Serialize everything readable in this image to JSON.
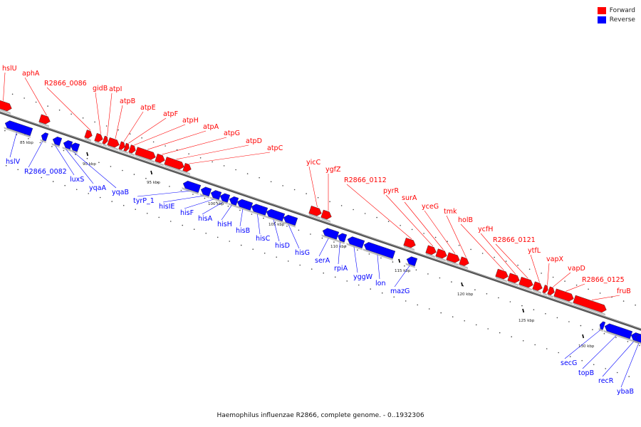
{
  "caption": "Haemophilus influenzae R2866, complete genome. - 0..1932306",
  "legend": {
    "forward_label": "Forward",
    "reverse_label": "Reverse",
    "forward_color": "#ff0000",
    "reverse_color": "#0000ff"
  },
  "tick_labels": [
    "85 kbp",
    "90 kbp",
    "95 kbp",
    "100 kbp",
    "105 kbp",
    "110 kbp",
    "115 kbp",
    "120 kbp",
    "125 kbp",
    "130 kbp"
  ],
  "forward_genes": [
    "hslU",
    "aphA",
    "R2866_0086",
    "gidB",
    "atpI",
    "atpB",
    "atpE",
    "atpF",
    "atpH",
    "atpA",
    "atpG",
    "atpD",
    "atpC",
    "yicC",
    "ygfZ",
    "R2866_0112",
    "pyrR",
    "surA",
    "yceG",
    "tmk",
    "holB",
    "ycfH",
    "R2866_0121",
    "ytfL",
    "vapX",
    "vapD",
    "R2866_0125",
    "fruB"
  ],
  "reverse_genes": [
    "hslV",
    "R2866_0082",
    "luxS",
    "yqaA",
    "yqaB",
    "tyrP_1",
    "hisIE",
    "hisF",
    "hisA",
    "hisH",
    "hisB",
    "hisC",
    "hisD",
    "hisG",
    "serA",
    "rpiA",
    "yggW",
    "lon",
    "mazG",
    "secG",
    "topB",
    "recR",
    "ybaB"
  ]
}
